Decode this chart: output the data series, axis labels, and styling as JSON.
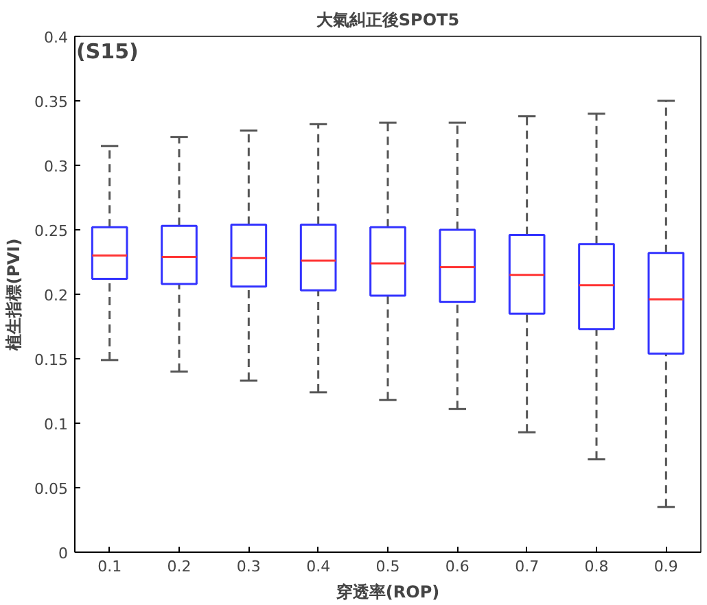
{
  "chart_data": {
    "type": "box",
    "title": "大氣糾正後SPOT5",
    "xlabel": "穿透率(ROP)",
    "ylabel": "植生指標(PVI)",
    "annotations": [
      "(S15)"
    ],
    "categories": [
      "0.1",
      "0.2",
      "0.3",
      "0.4",
      "0.5",
      "0.6",
      "0.7",
      "0.8",
      "0.9"
    ],
    "boxes": [
      {
        "low": 0.149,
        "q1": 0.212,
        "median": 0.23,
        "q3": 0.252,
        "high": 0.315
      },
      {
        "low": 0.14,
        "q1": 0.208,
        "median": 0.229,
        "q3": 0.253,
        "high": 0.322
      },
      {
        "low": 0.133,
        "q1": 0.206,
        "median": 0.228,
        "q3": 0.254,
        "high": 0.327
      },
      {
        "low": 0.124,
        "q1": 0.203,
        "median": 0.226,
        "q3": 0.254,
        "high": 0.332
      },
      {
        "low": 0.118,
        "q1": 0.199,
        "median": 0.224,
        "q3": 0.252,
        "high": 0.333
      },
      {
        "low": 0.111,
        "q1": 0.194,
        "median": 0.221,
        "q3": 0.25,
        "high": 0.333
      },
      {
        "low": 0.093,
        "q1": 0.185,
        "median": 0.215,
        "q3": 0.246,
        "high": 0.338
      },
      {
        "low": 0.072,
        "q1": 0.173,
        "median": 0.207,
        "q3": 0.239,
        "high": 0.34
      },
      {
        "low": 0.035,
        "q1": 0.154,
        "median": 0.196,
        "q3": 0.232,
        "high": 0.35
      }
    ],
    "color": "#3333ff",
    "ylim": [
      0,
      0.4
    ],
    "yticks": [
      0,
      0.05,
      0.1,
      0.15,
      0.2,
      0.25,
      0.3,
      0.35,
      0.4
    ],
    "grid": false
  }
}
